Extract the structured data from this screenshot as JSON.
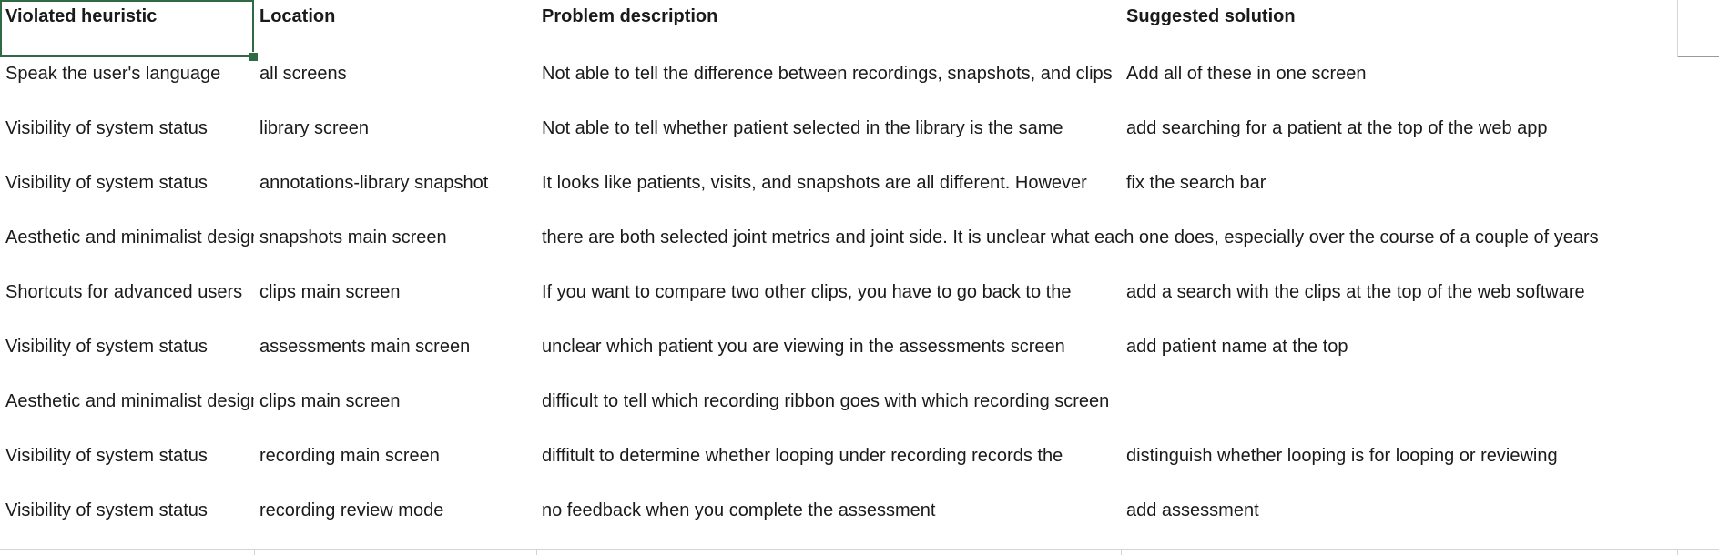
{
  "headers": [
    "Violated heuristic",
    "Location",
    "Problem description",
    "Suggested solution",
    ""
  ],
  "rows": [
    [
      "Speak the user's language",
      "all screens",
      "Not able to tell the difference between recordings, snapshots, and clips",
      "Add all of these in one screen",
      ""
    ],
    [
      "Visibility of system status",
      "library screen",
      "Not able to tell whether patient selected in the library is the same",
      "add searching for a patient at the top of the web app",
      ""
    ],
    [
      "Visibility of system status",
      "annotations-library snapshot",
      "It looks like patients, visits, and snapshots are all different. However",
      "fix the search bar",
      ""
    ],
    [
      "Aesthetic and minimalist design",
      "snapshots main screen",
      "there are both selected joint metrics and joint side. It is unclear what each one does, especially over the course of a couple of years",
      "",
      ""
    ],
    [
      "Shortcuts for advanced users",
      "clips  main screen",
      "If you want to compare two other clips, you have to go back to the",
      "add a search with the clips at the top of the web software",
      ""
    ],
    [
      "Visibility of system status",
      "assessments main screen",
      "unclear which patient you are viewing in the assessments screen",
      "add patient name at the top",
      ""
    ],
    [
      "Aesthetic and minimalist design",
      "clips main screen",
      "difficult to tell which recording ribbon goes with which recording screen",
      "",
      ""
    ],
    [
      "Visibility of system status",
      "recording main screen",
      "diffitult to determine whether looping under recording records the",
      "distinguish whether looping is for looping or reviewing",
      ""
    ],
    [
      "Visibility of system status",
      "recording review mode",
      "no feedback when you complete the assessment",
      "add assessment",
      ""
    ]
  ],
  "selected_cell": "Violated heuristic"
}
